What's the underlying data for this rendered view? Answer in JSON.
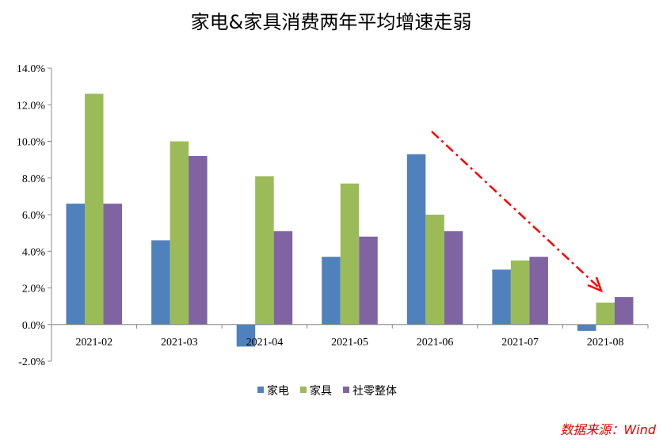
{
  "chart_data": {
    "type": "bar",
    "title": "家电&家具消费两年平均增速走弱",
    "categories": [
      "2021-02",
      "2021-03",
      "2021-04",
      "2021-05",
      "2021-06",
      "2021-07",
      "2021-08"
    ],
    "series": [
      {
        "name": "家电",
        "color": "#4f81bd",
        "values": [
          6.6,
          4.6,
          -1.2,
          3.7,
          9.3,
          3.0,
          -0.35
        ]
      },
      {
        "name": "家具",
        "color": "#9bbb59",
        "values": [
          12.6,
          10.0,
          8.1,
          7.7,
          6.0,
          3.5,
          1.2
        ]
      },
      {
        "name": "社零整体",
        "color": "#8064a2",
        "values": [
          6.6,
          9.2,
          5.1,
          4.8,
          5.1,
          3.7,
          1.5
        ]
      }
    ],
    "ylim": [
      -2,
      14
    ],
    "yticks": [
      "-2.0%",
      "0.0%",
      "2.0%",
      "4.0%",
      "6.0%",
      "8.0%",
      "10.0%",
      "12.0%",
      "14.0%"
    ],
    "grid": false,
    "legend": "bottom",
    "annotation": {
      "type": "arrow",
      "color": "#ff0000",
      "style": "dash-dot",
      "from": "2021-06",
      "to": "2021-08"
    }
  },
  "source": "数据来源：Wind"
}
